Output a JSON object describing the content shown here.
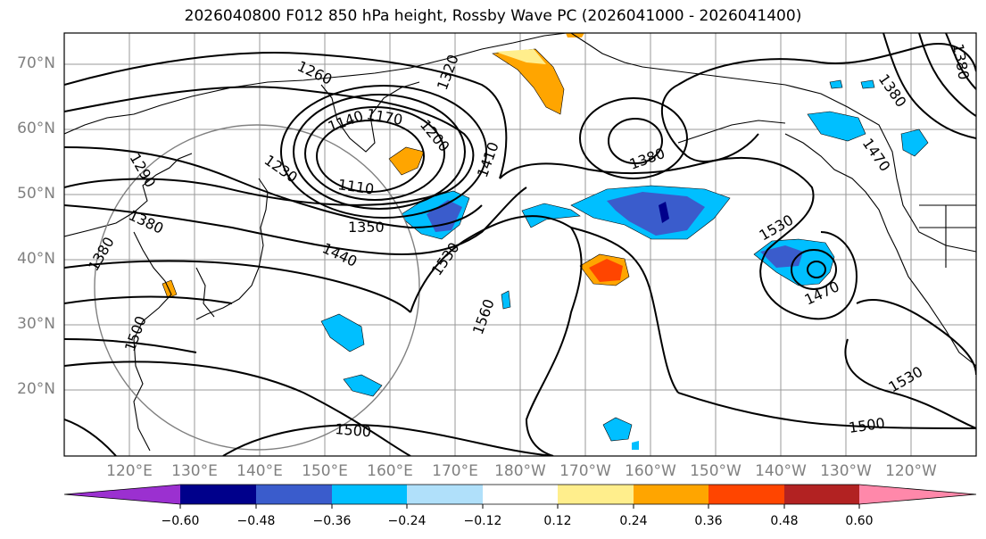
{
  "title": "2026040800 F012 850 hPa height, Rossby Wave PC (2026041000 - 2026041400)",
  "lat_labels": [
    "70°N",
    "60°N",
    "50°N",
    "40°N",
    "30°N",
    "20°N"
  ],
  "lon_labels": [
    "120°E",
    "130°E",
    "140°E",
    "150°E",
    "160°E",
    "170°E",
    "180°W",
    "170°W",
    "160°W",
    "150°W",
    "140°W",
    "130°W",
    "120°W"
  ],
  "colorbar": {
    "ticks": [
      "−0.60",
      "−0.48",
      "−0.36",
      "−0.24",
      "−0.12",
      "0.12",
      "0.24",
      "0.36",
      "0.48",
      "0.60"
    ],
    "colors": [
      "#9b30d0",
      "#00008b",
      "#3a5ccc",
      "#00bfff",
      "#b0e0fa",
      "#ffffff",
      "#ffee8c",
      "#ffa500",
      "#ff4500",
      "#b22222",
      "#ff88aa"
    ]
  },
  "contour_labels": [
    "1260",
    "1320",
    "1140",
    "1170",
    "1200",
    "1230",
    "1110",
    "1290",
    "1380",
    "1350",
    "1410",
    "1440",
    "1530",
    "1380",
    "1500",
    "1560",
    "1380",
    "1470",
    "1530",
    "1470",
    "1530",
    "1500",
    "1500",
    "1380",
    "1380"
  ]
}
